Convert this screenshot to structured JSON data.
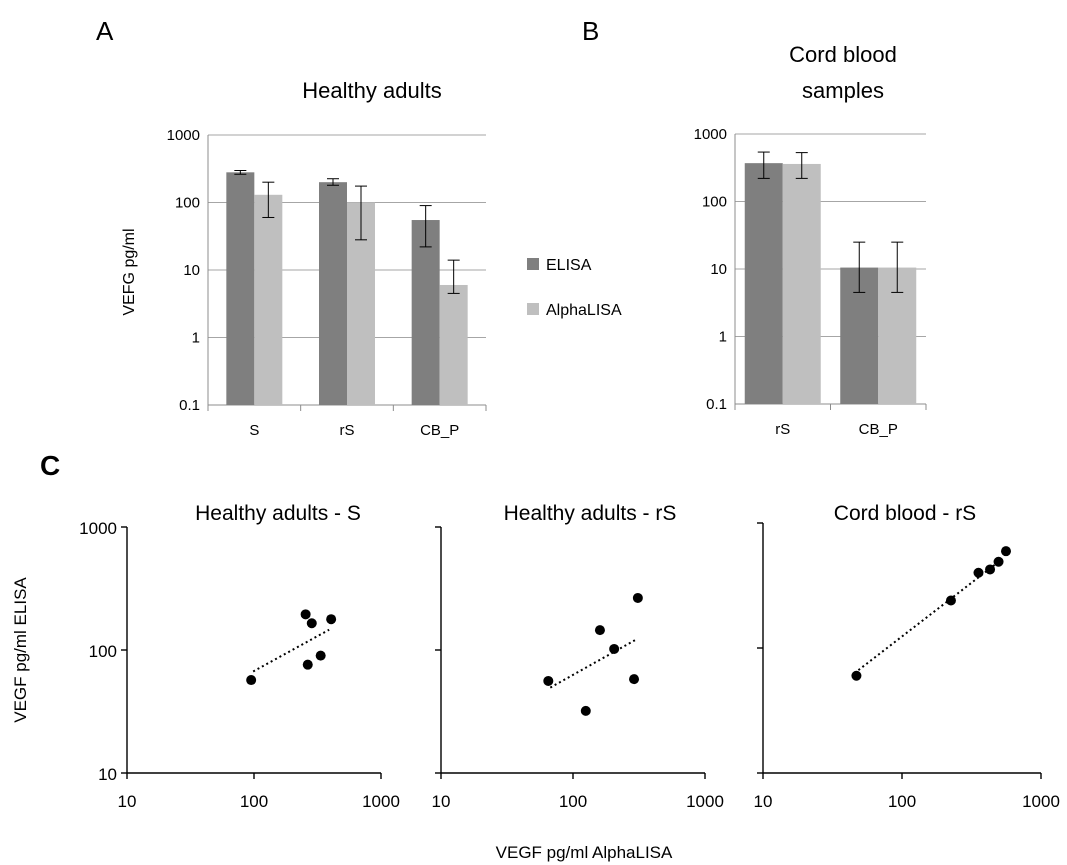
{
  "panels": {
    "A": {
      "letter": "A"
    },
    "B": {
      "letter": "B"
    },
    "C": {
      "letter": "C"
    }
  },
  "legend": {
    "items": [
      {
        "label": "ELISA",
        "color": "#7f7f7f"
      },
      {
        "label": "AlphaLISA",
        "color": "#bfbfbf"
      }
    ]
  },
  "chart_data": [
    {
      "id": "A",
      "type": "bar",
      "title": "Healthy adults",
      "ylabel": "VEFG pg/ml",
      "xlabel": "",
      "yscale": "log",
      "ylim": [
        0.1,
        1000
      ],
      "ytick_labels": [
        "0.1",
        "1",
        "10",
        "100",
        "1000"
      ],
      "grid": true,
      "categories": [
        "S",
        "rS",
        "CB_P"
      ],
      "series": [
        {
          "name": "ELISA",
          "color": "#7f7f7f",
          "values": [
            280,
            200,
            55
          ],
          "err_low": [
            262,
            180,
            22
          ],
          "err_high": [
            298,
            225,
            90
          ]
        },
        {
          "name": "AlphaLISA",
          "color": "#bfbfbf",
          "values": [
            130,
            100,
            6
          ],
          "err_low": [
            60,
            28,
            4.5
          ],
          "err_high": [
            200,
            175,
            14
          ]
        }
      ]
    },
    {
      "id": "B",
      "type": "bar",
      "title": "Cord blood samples",
      "title_lines": [
        "Cord blood",
        "samples"
      ],
      "ylabel": "",
      "xlabel": "",
      "yscale": "log",
      "ylim": [
        0.1,
        1000
      ],
      "ytick_labels": [
        "0.1",
        "1",
        "10",
        "100",
        "1000"
      ],
      "grid": true,
      "categories": [
        "rS",
        "CB_P"
      ],
      "series": [
        {
          "name": "ELISA",
          "color": "#7f7f7f",
          "values": [
            370,
            10.5
          ],
          "err_low": [
            220,
            4.5
          ],
          "err_high": [
            540,
            25
          ]
        },
        {
          "name": "AlphaLISA",
          "color": "#bfbfbf",
          "values": [
            360,
            10.5
          ],
          "err_low": [
            220,
            4.5
          ],
          "err_high": [
            530,
            25
          ]
        }
      ]
    },
    {
      "id": "C1",
      "type": "scatter",
      "title": "Healthy adults - S",
      "xscale": "log",
      "yscale": "log",
      "xlim": [
        10,
        1000
      ],
      "ylim": [
        10,
        1000
      ],
      "xtick_labels": [
        "10",
        "100",
        "1000"
      ],
      "ytick_labels": [
        "10",
        "100",
        "1000"
      ],
      "trendline": "dotted",
      "points": [
        {
          "x": 95,
          "y": 57
        },
        {
          "x": 255,
          "y": 195
        },
        {
          "x": 285,
          "y": 165
        },
        {
          "x": 405,
          "y": 178
        },
        {
          "x": 265,
          "y": 76
        },
        {
          "x": 335,
          "y": 90
        }
      ]
    },
    {
      "id": "C2",
      "type": "scatter",
      "title": "Healthy adults - rS",
      "xscale": "log",
      "yscale": "log",
      "xlim": [
        10,
        1000
      ],
      "ylim": [
        10,
        1000
      ],
      "xtick_labels": [
        "10",
        "100",
        "1000"
      ],
      "ytick_labels": [],
      "trendline": "dotted",
      "points": [
        {
          "x": 65,
          "y": 56
        },
        {
          "x": 125,
          "y": 32
        },
        {
          "x": 160,
          "y": 145
        },
        {
          "x": 205,
          "y": 102
        },
        {
          "x": 290,
          "y": 58
        },
        {
          "x": 310,
          "y": 265
        }
      ]
    },
    {
      "id": "C3",
      "type": "scatter",
      "title": "Cord blood - rS",
      "xscale": "log",
      "yscale": "log",
      "xlim": [
        10,
        1000
      ],
      "ylim": [
        10,
        1000
      ],
      "xtick_labels": [
        "10",
        "100",
        "1000"
      ],
      "ytick_labels": [],
      "trendline": "dotted",
      "points": [
        {
          "x": 47,
          "y": 60
        },
        {
          "x": 225,
          "y": 240
        },
        {
          "x": 355,
          "y": 400
        },
        {
          "x": 430,
          "y": 425
        },
        {
          "x": 495,
          "y": 490
        },
        {
          "x": 560,
          "y": 595
        }
      ]
    }
  ],
  "shared": {
    "c_ylabel": "VEGF pg/ml ELISA",
    "c_xlabel": "VEGF pg/ml AlphaLISA"
  }
}
